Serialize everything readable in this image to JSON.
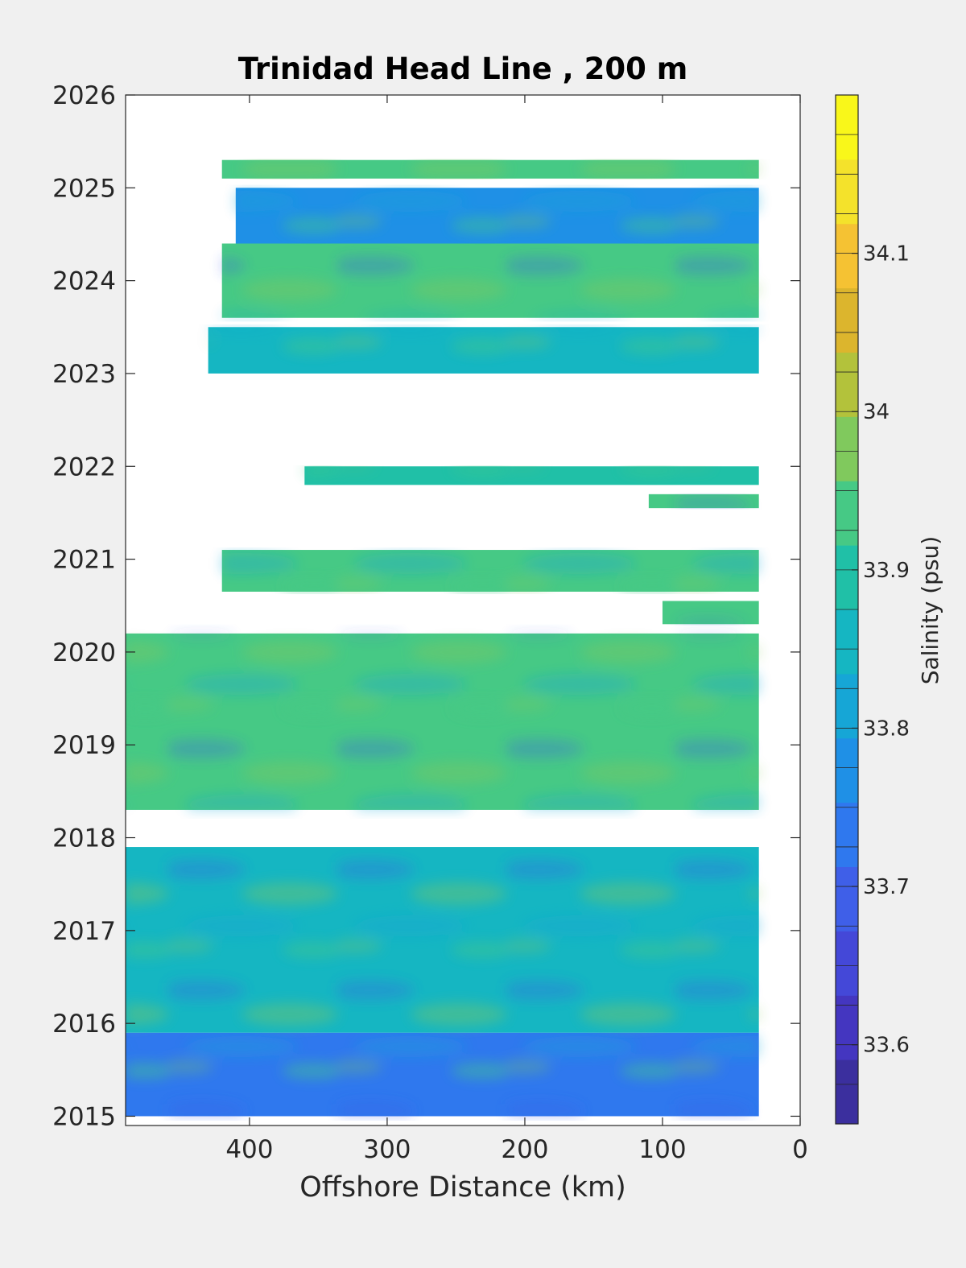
{
  "chart_data": {
    "type": "heatmap",
    "title": "Trinidad Head Line , 200 m",
    "xlabel": "Offshore Distance (km)",
    "ylabel": "",
    "x_reversed": true,
    "xlim": [
      490,
      0
    ],
    "ylim": [
      2014.9,
      2026
    ],
    "xticks": [
      400,
      300,
      200,
      100,
      0
    ],
    "yticks": [
      2015,
      2016,
      2017,
      2018,
      2019,
      2020,
      2021,
      2022,
      2023,
      2024,
      2025,
      2026
    ],
    "colorbar": {
      "label": "Salinity (psu)",
      "range": [
        33.55,
        34.2
      ],
      "levels": 13,
      "ticks": [
        33.6,
        33.7,
        33.8,
        33.9,
        34,
        34.1
      ],
      "colormap": [
        "#3b2f9e",
        "#4436c0",
        "#4448d8",
        "#3f5fe8",
        "#2f78ee",
        "#1f90e6",
        "#16a6d6",
        "#15b6c2",
        "#20c0a7",
        "#46c985",
        "#80c95d",
        "#b3c23b",
        "#dcb52d",
        "#f5c233",
        "#f4e22b",
        "#f9f71a"
      ]
    },
    "series": [
      {
        "y_range": [
          2015.0,
          2015.9
        ],
        "x_range": [
          490,
          30
        ],
        "mean": 33.74
      },
      {
        "y_range": [
          2015.9,
          2017.9
        ],
        "x_range": [
          490,
          30
        ],
        "mean": 33.86
      },
      {
        "y_range": [
          2018.3,
          2020.2
        ],
        "x_range": [
          490,
          30
        ],
        "mean": 33.93
      },
      {
        "y_range": [
          2020.3,
          2020.55
        ],
        "x_range": [
          100,
          30
        ],
        "mean": 33.92
      },
      {
        "y_range": [
          2020.65,
          2021.1
        ],
        "x_range": [
          420,
          30
        ],
        "mean": 33.94
      },
      {
        "y_range": [
          2021.55,
          2021.7
        ],
        "x_range": [
          110,
          30
        ],
        "mean": 33.95
      },
      {
        "y_range": [
          2021.8,
          2022.0
        ],
        "x_range": [
          360,
          30
        ],
        "mean": 33.88
      },
      {
        "y_range": [
          2023.0,
          2023.5
        ],
        "x_range": [
          430,
          30
        ],
        "mean": 33.86
      },
      {
        "y_range": [
          2023.6,
          2024.4
        ],
        "x_range": [
          420,
          30
        ],
        "mean": 33.92
      },
      {
        "y_range": [
          2024.4,
          2025.0
        ],
        "x_range": [
          410,
          30
        ],
        "mean": 33.78
      },
      {
        "y_range": [
          2025.1,
          2025.3
        ],
        "x_range": [
          420,
          30
        ],
        "mean": 33.93
      }
    ]
  }
}
